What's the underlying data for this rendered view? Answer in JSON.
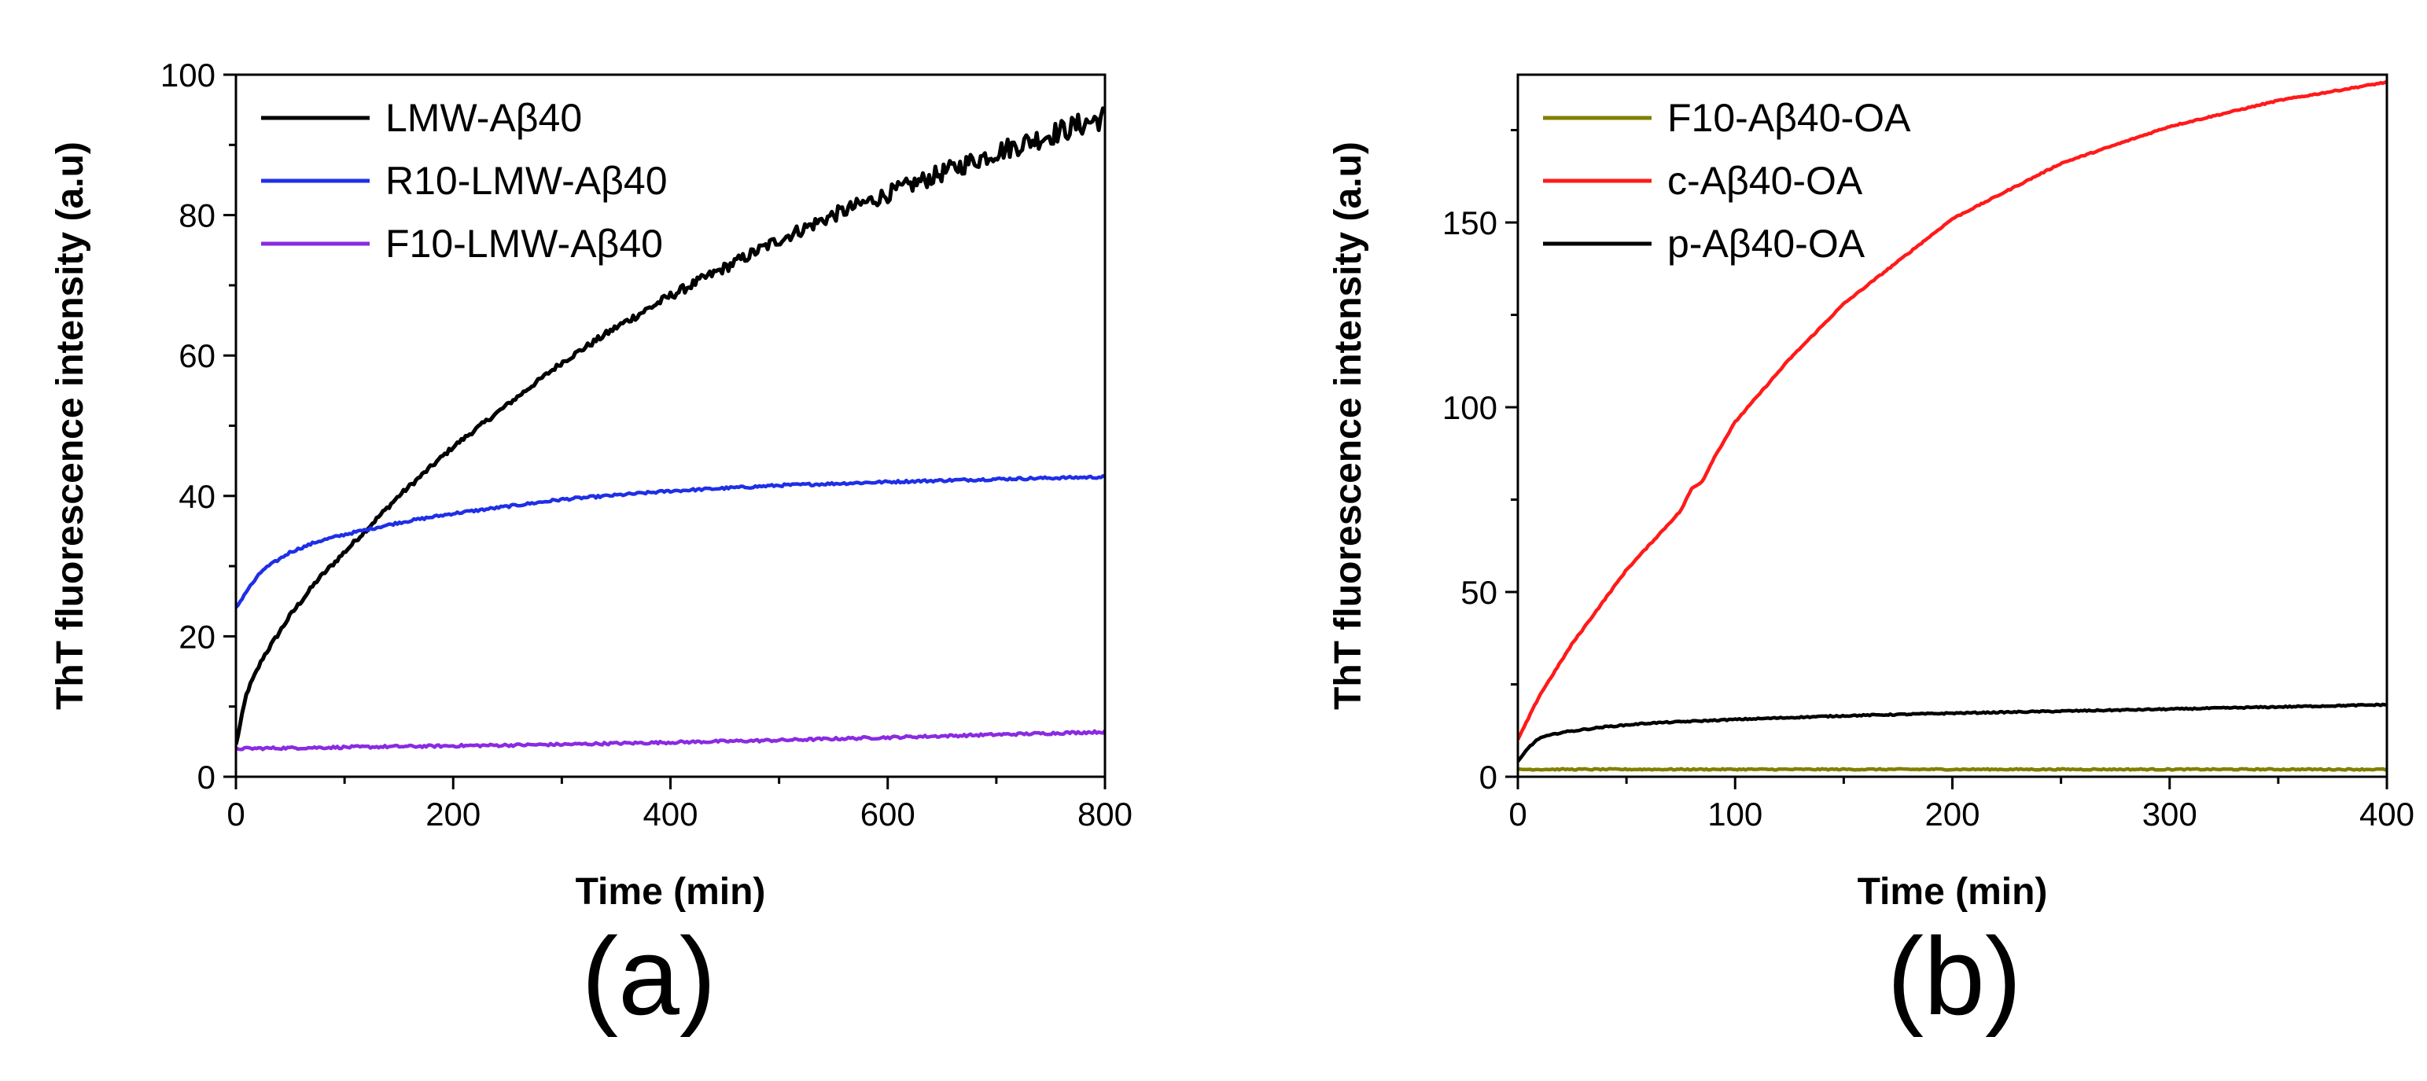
{
  "chart_data": [
    {
      "type": "line",
      "panel_label": "(a)",
      "xlabel": "Time (min)",
      "ylabel": "ThT fluorescence intensity (a.u)",
      "xlim": [
        0,
        800
      ],
      "ylim": [
        0,
        100
      ],
      "xticks": [
        0,
        200,
        400,
        600,
        800
      ],
      "yticks": [
        0,
        20,
        40,
        60,
        80,
        100
      ],
      "legend_position": "top-left",
      "series": [
        {
          "name": "LMW-Aβ40",
          "color": "#000000",
          "noisy": true,
          "x": [
            0,
            10,
            25,
            50,
            75,
            100,
            150,
            200,
            250,
            300,
            350,
            400,
            450,
            500,
            550,
            600,
            650,
            700,
            750,
            800
          ],
          "y": [
            4.5,
            12,
            17,
            23,
            28,
            32,
            40,
            47,
            53,
            59,
            64,
            68.5,
            72.5,
            76.5,
            80,
            83,
            86,
            89,
            91.5,
            94
          ]
        },
        {
          "name": "R10-LMW-Aβ40",
          "color": "#1f2fe6",
          "noisy": false,
          "x": [
            0,
            10,
            25,
            50,
            75,
            100,
            150,
            200,
            300,
            400,
            500,
            600,
            700,
            800
          ],
          "y": [
            24,
            26.5,
            29.5,
            32,
            33.5,
            34.5,
            36.2,
            37.5,
            39.5,
            40.7,
            41.5,
            42.0,
            42.4,
            42.7
          ]
        },
        {
          "name": "F10-LMW-Aβ40",
          "color": "#8a2be2",
          "noisy": false,
          "x": [
            0,
            100,
            200,
            300,
            400,
            500,
            600,
            700,
            800
          ],
          "y": [
            4,
            4.2,
            4.4,
            4.6,
            4.9,
            5.2,
            5.6,
            6.0,
            6.4
          ]
        }
      ]
    },
    {
      "type": "line",
      "panel_label": "(b)",
      "xlabel": "Time (min)",
      "ylabel": "ThT fluorescence intensity (a.u)",
      "xlim": [
        0,
        400
      ],
      "ylim": [
        0,
        190
      ],
      "xticks": [
        0,
        100,
        200,
        300,
        400
      ],
      "yticks": [
        0,
        50,
        100,
        150
      ],
      "legend_position": "top-left",
      "series": [
        {
          "name": "F10-Aβ40-OA",
          "color": "#808000",
          "noisy": false,
          "x": [
            0,
            400
          ],
          "y": [
            2,
            2
          ]
        },
        {
          "name": "c-Aβ40-OA",
          "color": "#ff1a1a",
          "noisy": false,
          "x": [
            0,
            10,
            25,
            50,
            75,
            80,
            85,
            90,
            100,
            125,
            150,
            200,
            250,
            300,
            350,
            400
          ],
          "y": [
            10,
            22,
            36,
            56,
            72,
            78,
            80,
            86,
            96,
            113,
            128,
            151,
            166,
            176,
            183,
            188
          ]
        },
        {
          "name": "p-Aβ40-OA",
          "color": "#000000",
          "noisy": false,
          "x": [
            0,
            5,
            10,
            20,
            40,
            60,
            100,
            150,
            200,
            300,
            400
          ],
          "y": [
            4,
            8,
            10.5,
            12,
            13.5,
            14.5,
            15.5,
            16.5,
            17.2,
            18.3,
            19.5
          ]
        }
      ]
    }
  ]
}
